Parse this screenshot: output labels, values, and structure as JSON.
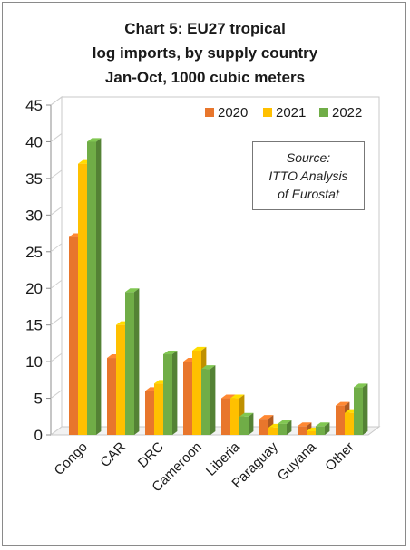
{
  "chart_data": {
    "type": "bar",
    "title": [
      "Chart 5: EU27 tropical",
      "log imports, by supply country",
      "Jan-Oct, 1000 cubic meters"
    ],
    "categories": [
      "Congo",
      "CAR",
      "DRC",
      "Cameroon",
      "Liberia",
      "Paraguay",
      "Guyana",
      "Other"
    ],
    "series": [
      {
        "name": "2020",
        "color": "#E8762C",
        "values": [
          27,
          10.5,
          6,
          10,
          5,
          2.2,
          1.2,
          4
        ]
      },
      {
        "name": "2021",
        "color": "#FFC000",
        "values": [
          37,
          15,
          7,
          11.5,
          5,
          1,
          0.5,
          3
        ]
      },
      {
        "name": "2022",
        "color": "#70AD47",
        "values": [
          40,
          19.5,
          11,
          9,
          2.5,
          1.5,
          1.2,
          6.5
        ]
      }
    ],
    "ylim": [
      0,
      45
    ],
    "yticks": [
      0,
      5,
      10,
      15,
      20,
      25,
      30,
      35,
      40,
      45
    ],
    "grid": false,
    "legend_position": "top-right",
    "annotation": [
      "Source:",
      "ITTO  Analysis",
      "of Eurostat"
    ],
    "style": "3d-clustered-column"
  }
}
